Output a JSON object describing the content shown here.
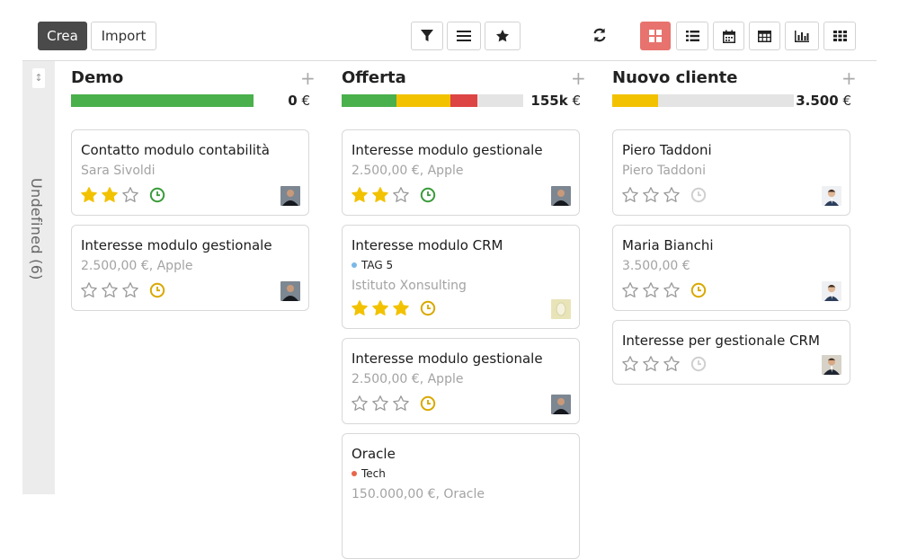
{
  "toolbar": {
    "create_label": "Crea",
    "import_label": "Import"
  },
  "colors": {
    "green": "#4ab04c",
    "yellow": "#f2c200",
    "red": "#dd4444",
    "grey_bar": "#e4e4e4",
    "active_view": "#e8726e"
  },
  "folded_column": {
    "label": "Undefined (6)"
  },
  "columns": [
    {
      "title": "Demo",
      "total_amount": "0",
      "currency": " €",
      "progress": {
        "green": 1.0,
        "yellow": 0,
        "red": 0
      },
      "cards": [
        {
          "title": "Contatto modulo contabilità",
          "subtitle": "Sara Sivoldi",
          "tag": null,
          "stars": 2,
          "clock": "green",
          "avatar": "dark"
        },
        {
          "title": "Interesse modulo gestionale",
          "subtitle": "2.500,00 €, Apple",
          "tag": null,
          "stars": 0,
          "clock": "yellow",
          "avatar": "dark"
        }
      ]
    },
    {
      "title": "Offerta",
      "total_amount": "155k",
      "currency": " €",
      "progress": {
        "green": 0.3,
        "yellow": 0.3,
        "red": 0.15
      },
      "cards": [
        {
          "title": "Interesse modulo gestionale",
          "subtitle": "2.500,00 €, Apple",
          "tag": null,
          "stars": 2,
          "clock": "green",
          "avatar": "dark"
        },
        {
          "title": "Interesse modulo CRM",
          "subtitle": "Istituto Xonsulting",
          "tag": {
            "label": "TAG 5",
            "color": "#7ab8e8"
          },
          "stars": 3,
          "clock": "yellow",
          "avatar": "placeholder"
        },
        {
          "title": "Interesse modulo gestionale",
          "subtitle": "2.500,00 €, Apple",
          "tag": null,
          "stars": 0,
          "clock": "yellow",
          "avatar": "dark"
        },
        {
          "title": "Oracle",
          "subtitle": "150.000,00 €, Oracle",
          "tag": {
            "label": "Tech",
            "color": "#e8664a"
          },
          "stars": 0,
          "clock": null,
          "avatar": null
        }
      ]
    },
    {
      "title": "Nuovo cliente",
      "total_amount": "3.500",
      "currency": " €",
      "progress": {
        "green": 0,
        "yellow": 0.25,
        "red": 0
      },
      "cards": [
        {
          "title": "Piero Taddoni",
          "subtitle": "Piero Taddoni",
          "tag": null,
          "stars": 0,
          "clock": "grey",
          "avatar": "light"
        },
        {
          "title": "Maria Bianchi",
          "subtitle": "3.500,00 €",
          "tag": null,
          "stars": 0,
          "clock": "yellow",
          "avatar": "light"
        },
        {
          "title": "Interesse per gestionale CRM",
          "subtitle": "",
          "tag": null,
          "stars": 0,
          "clock": "grey",
          "avatar": "suit"
        }
      ]
    }
  ]
}
